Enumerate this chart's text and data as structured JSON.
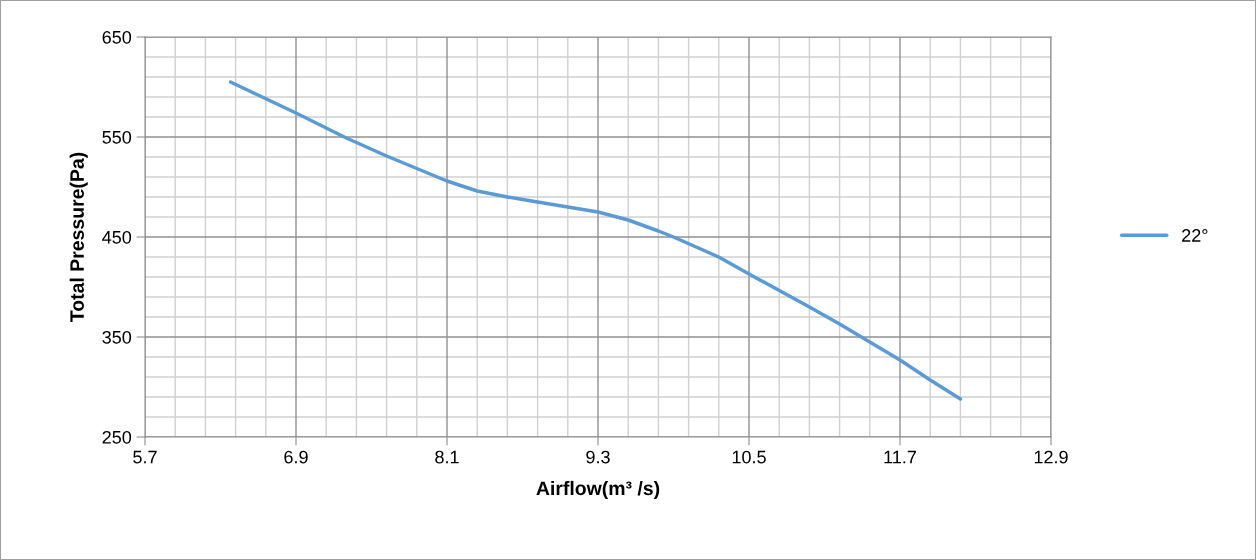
{
  "chart_data": {
    "type": "line",
    "xlabel": "Airflow(m³ /s)",
    "ylabel": "Total Pressure(Pa)",
    "xlim": [
      5.7,
      12.9
    ],
    "xticks": [
      5.7,
      6.9,
      8.1,
      9.3,
      10.5,
      11.7,
      12.9
    ],
    "ylim": [
      250,
      650
    ],
    "yticks": [
      250,
      350,
      450,
      550,
      650
    ],
    "grid": true,
    "legend": "right",
    "marker": "none",
    "line_style": "solid",
    "series": [
      {
        "name": "22°",
        "color": "#5b9bd5",
        "x": [
          6.38,
          6.9,
          7.3,
          7.62,
          8.1,
          8.34,
          8.58,
          8.82,
          9.3,
          9.54,
          9.78,
          9.9,
          10.26,
          10.5,
          10.98,
          11.22,
          11.46,
          11.7,
          11.94,
          12.18
        ],
        "values": [
          605,
          574,
          549,
          531,
          506,
          496,
          490,
          485,
          475,
          467,
          456,
          450,
          430,
          413,
          380,
          363,
          345,
          327,
          307,
          288
        ]
      }
    ]
  }
}
